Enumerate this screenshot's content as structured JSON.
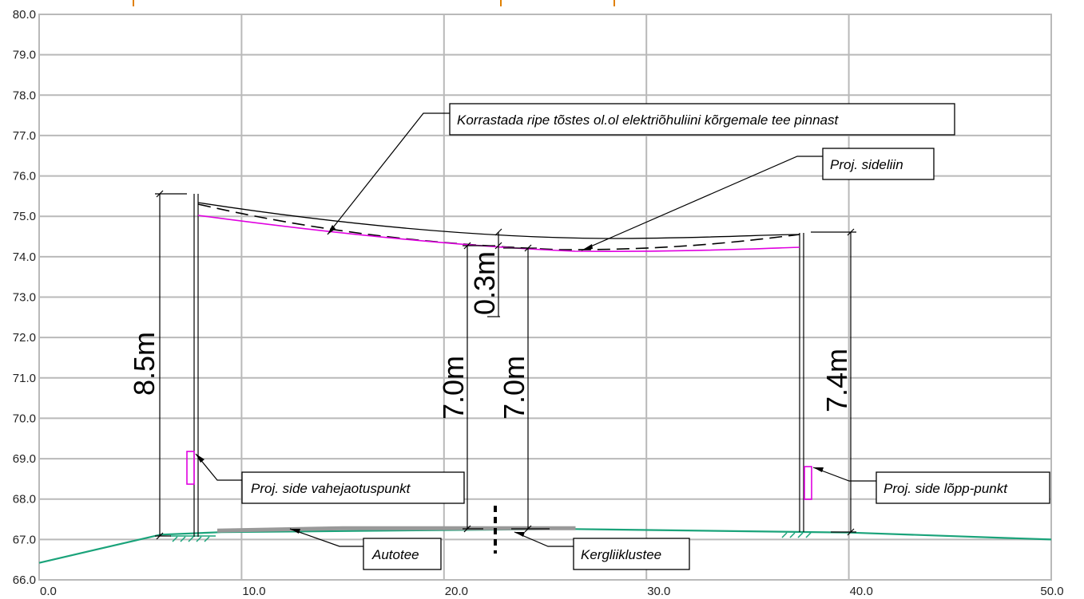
{
  "chart_data": {
    "type": "diagram",
    "x_axis": {
      "min": 0,
      "max": 50,
      "tick_step": 10,
      "ticks": [
        "0.0",
        "10.0",
        "20.0",
        "30.0",
        "40.0",
        "50.0"
      ]
    },
    "y_axis": {
      "min": 66,
      "max": 80,
      "tick_step": 1,
      "ticks": [
        "66.0",
        "67.0",
        "68.0",
        "69.0",
        "70.0",
        "71.0",
        "72.0",
        "73.0",
        "74.0",
        "75.0",
        "76.0",
        "77.0",
        "78.0",
        "79.0",
        "80.0"
      ]
    },
    "grid": true,
    "ground_profile": [
      [
        0,
        66.42
      ],
      [
        6.0,
        67.12
      ],
      [
        9.0,
        67.18
      ],
      [
        26.0,
        67.26
      ],
      [
        40.0,
        67.17
      ],
      [
        50.0,
        67.0
      ]
    ],
    "road_surface": [
      [
        8.8,
        67.22
      ],
      [
        15,
        67.28
      ],
      [
        26.5,
        67.28
      ]
    ],
    "poles": [
      {
        "x": 7.35,
        "bottom": 67.12,
        "top": 75.58
      },
      {
        "x": 37.6,
        "bottom": 67.17,
        "top": 74.6
      }
    ],
    "existing_line": [
      [
        7.5,
        75.35
      ],
      [
        15,
        74.85
      ],
      [
        22.5,
        74.58
      ],
      [
        30,
        74.48
      ],
      [
        37.6,
        74.57
      ]
    ],
    "existing_line_dashed": [
      [
        7.5,
        75.3
      ],
      [
        15,
        74.6
      ],
      [
        22.5,
        74.25
      ],
      [
        27,
        74.18
      ],
      [
        33,
        74.25
      ],
      [
        37.6,
        74.57
      ]
    ],
    "proposed_line": [
      [
        7.5,
        75.02
      ],
      [
        15,
        74.62
      ],
      [
        22.5,
        74.3
      ],
      [
        27,
        74.18
      ],
      [
        33,
        74.2
      ],
      [
        37.6,
        74.25
      ]
    ],
    "dimensions": [
      {
        "label": "8.5m",
        "x": 5.5
      },
      {
        "label": "7.0m",
        "x": 20.9
      },
      {
        "label": "7.0m",
        "x": 23.9
      },
      {
        "label": "7.4m",
        "x": 40.0
      },
      {
        "label": "0.3m",
        "x": 22.3
      }
    ],
    "annotations": [
      "Korrastada ripe tõstes ol.ol elektriõhuliini kõrgemale tee pinnast",
      "Proj. sideliin",
      "Proj. side vahejaotuspunkt",
      "Proj. side lõpp-punkt",
      "Autotee",
      "Kergliiklustee"
    ]
  },
  "colors": {
    "grid": "#b9b9b9",
    "ground": "#1aa37a",
    "road": "#999999",
    "proposed_line": "#e000e0",
    "existing_line": "#000000",
    "marker": "#e08000"
  }
}
